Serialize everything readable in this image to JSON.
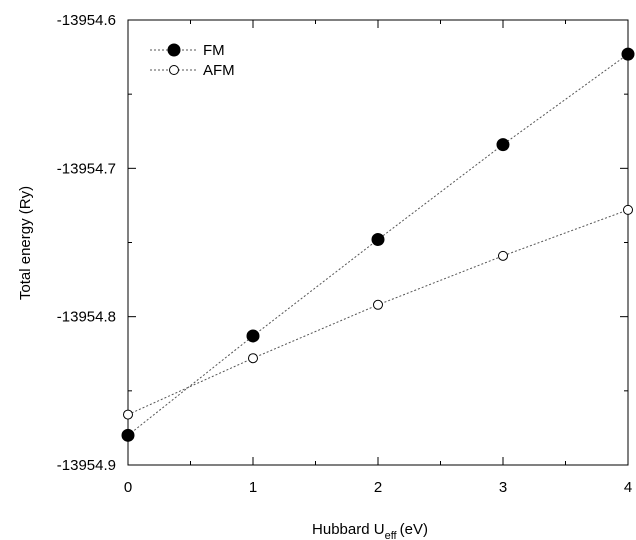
{
  "chart_data": {
    "type": "line",
    "title": "",
    "xlabel": {
      "main": "Hubbard U",
      "sub": "eff",
      "unit": "(eV)"
    },
    "ylabel": "Total energy (Ry)",
    "xlim": [
      0,
      4
    ],
    "ylim": [
      -13954.9,
      -13954.6
    ],
    "x_ticks": [
      0,
      1,
      2,
      3,
      4
    ],
    "x_tick_labels": [
      "0",
      "1",
      "2",
      "3",
      "4"
    ],
    "y_ticks": [
      -13954.6,
      -13954.7,
      -13954.8,
      -13954.9
    ],
    "y_tick_labels": [
      "-13954.6",
      "-13954.7",
      "-13954.8",
      "-13954.9"
    ],
    "grid": false,
    "legend_position": "top-left",
    "x": [
      0,
      1,
      2,
      3,
      4
    ],
    "series": [
      {
        "name": "FM",
        "marker": "filled-circle",
        "line_style": "dotted",
        "color": "#000000",
        "values": [
          -13954.88,
          -13954.813,
          -13954.748,
          -13954.684,
          -13954.623
        ]
      },
      {
        "name": "AFM",
        "marker": "open-circle",
        "line_style": "dotted",
        "color": "#000000",
        "values": [
          -13954.866,
          -13954.828,
          -13954.792,
          -13954.759,
          -13954.728
        ]
      }
    ]
  }
}
